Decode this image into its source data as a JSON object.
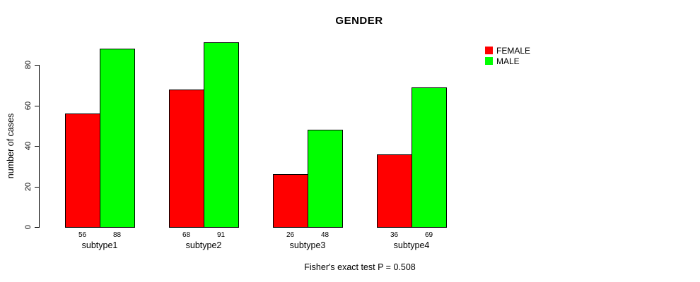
{
  "chart_data": {
    "type": "bar",
    "title": "GENDER",
    "ylabel": "number of cases",
    "xlabel": "",
    "categories": [
      "subtype1",
      "subtype2",
      "subtype3",
      "subtype4"
    ],
    "series": [
      {
        "name": "FEMALE",
        "color": "#ff0000",
        "values": [
          56,
          68,
          26,
          36
        ]
      },
      {
        "name": "MALE",
        "color": "#00ff00",
        "values": [
          88,
          91,
          48,
          69
        ]
      }
    ],
    "yticks": [
      0,
      20,
      40,
      60,
      80
    ],
    "ylim": [
      0,
      91
    ],
    "grid": false,
    "bar_outline_color": "#000000",
    "bar_value_labels_shown": true,
    "legend_position": "top-right",
    "legend_entries": [
      "FEMALE",
      "MALE"
    ],
    "annotation": "Fisher's exact test P = 0.508"
  }
}
